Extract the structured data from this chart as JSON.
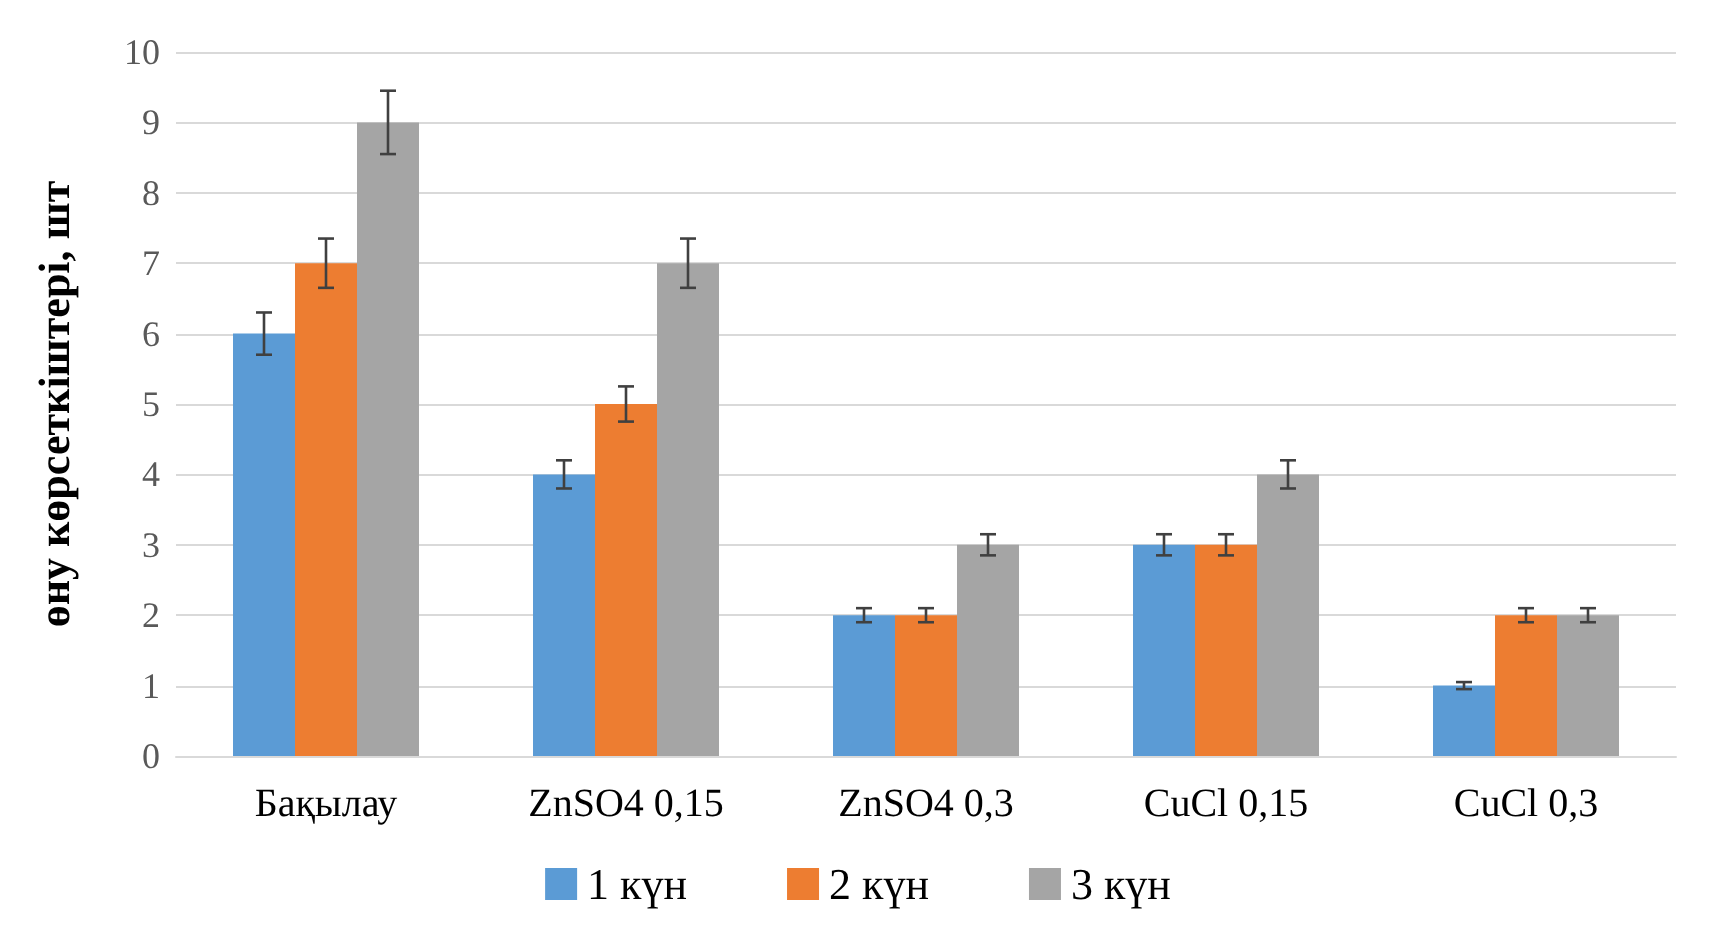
{
  "chart_data": {
    "type": "bar",
    "ylabel": "өну көрсеткіштері, шт",
    "categories": [
      "Бақылау",
      "ZnSO4 0,15",
      "ZnSO4 0,3",
      "CuCl 0,15",
      "CuCl 0,3"
    ],
    "series": [
      {
        "name": "1 күн",
        "color": "#5b9bd5",
        "values": [
          6,
          4,
          2,
          3,
          1
        ],
        "errors": [
          0.3,
          0.2,
          0.1,
          0.15,
          0.05
        ]
      },
      {
        "name": "2 күн",
        "color": "#ed7d31",
        "values": [
          7,
          5,
          2,
          3,
          2
        ],
        "errors": [
          0.35,
          0.25,
          0.1,
          0.15,
          0.1
        ]
      },
      {
        "name": "3 күн",
        "color": "#a5a5a5",
        "values": [
          9,
          7,
          3,
          4,
          2
        ],
        "errors": [
          0.45,
          0.35,
          0.15,
          0.2,
          0.1
        ]
      }
    ],
    "ylim": [
      0,
      10
    ],
    "yticks": [
      0,
      1,
      2,
      3,
      4,
      5,
      6,
      7,
      8,
      9,
      10
    ],
    "grid": "y",
    "legend": "bottom"
  }
}
